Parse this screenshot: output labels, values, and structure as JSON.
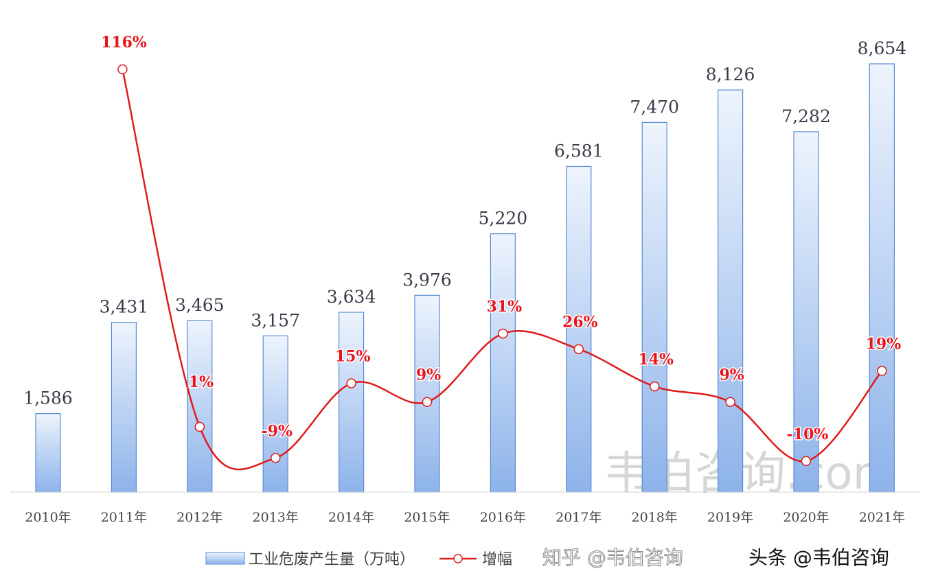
{
  "chart_data": {
    "type": "bar+line",
    "title": "",
    "categories": [
      "2010年",
      "2011年",
      "2012年",
      "2013年",
      "2014年",
      "2015年",
      "2016年",
      "2017年",
      "2018年",
      "2019年",
      "2020年",
      "2021年"
    ],
    "series": [
      {
        "name": "工业危废产生量（万吨）",
        "type": "bar",
        "values": [
          1586,
          3431,
          3465,
          3157,
          3634,
          3976,
          5220,
          6581,
          7470,
          8126,
          7282,
          8654
        ],
        "labels": [
          "1,586",
          "3,431",
          "3,465",
          "3,157",
          "3,634",
          "3,976",
          "5,220",
          "6,581",
          "7,470",
          "8,126",
          "7,282",
          "8,654"
        ]
      },
      {
        "name": "增幅",
        "type": "line",
        "axis": "secondary",
        "values": [
          null,
          116,
          1,
          -9,
          15,
          9,
          31,
          26,
          14,
          9,
          -10,
          19
        ],
        "labels": [
          "",
          "116%",
          "1%",
          "-9%",
          "15%",
          "9%",
          "31%",
          "26%",
          "14%",
          "9%",
          "-10%",
          "19%"
        ]
      }
    ],
    "ylim": [
      0,
      8654
    ],
    "y2lim": [
      -10,
      116
    ],
    "grid": false,
    "legend": "bottom",
    "colors": {
      "bar_fill_top": "#eef4fd",
      "bar_fill_bottom": "#8db3ea",
      "bar_border": "#5a8ad4",
      "line": "#e01b1b"
    }
  },
  "watermarks": {
    "center": "韦伯咨询.com",
    "zhihu": "知乎 @韦伯咨询",
    "toutiao": "头条 @韦伯咨询"
  }
}
